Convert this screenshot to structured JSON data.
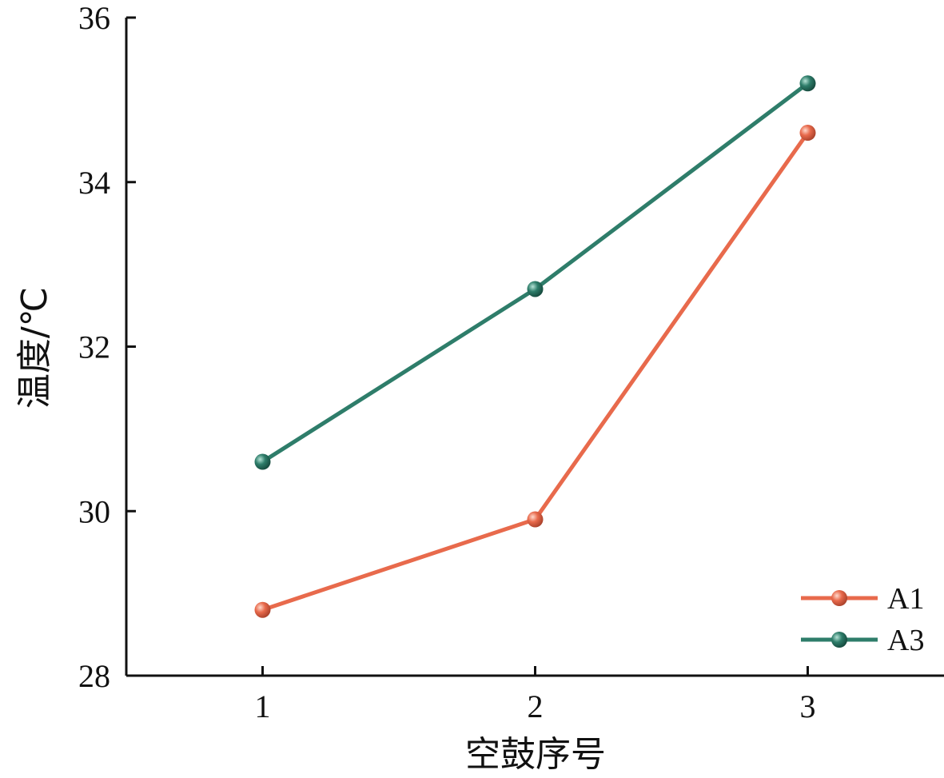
{
  "chart_data": {
    "type": "line",
    "xlabel": "空鼓序号",
    "ylabel": "温度/℃",
    "categories": [
      "1",
      "2",
      "3"
    ],
    "x": [
      1,
      2,
      3
    ],
    "xlim": [
      0.5,
      3.5
    ],
    "ylim": [
      28,
      36
    ],
    "yticks": [
      28,
      30,
      32,
      34,
      36
    ],
    "ytick_labels": [
      "28",
      "30",
      "32",
      "34",
      "36"
    ],
    "grid": false,
    "legend_position": "bottom-right",
    "series": [
      {
        "name": "A1",
        "color": "#E86A4C",
        "values": [
          28.8,
          29.9,
          34.6
        ]
      },
      {
        "name": "A3",
        "color": "#2E7D6A",
        "values": [
          30.6,
          32.7,
          35.2
        ]
      }
    ]
  }
}
